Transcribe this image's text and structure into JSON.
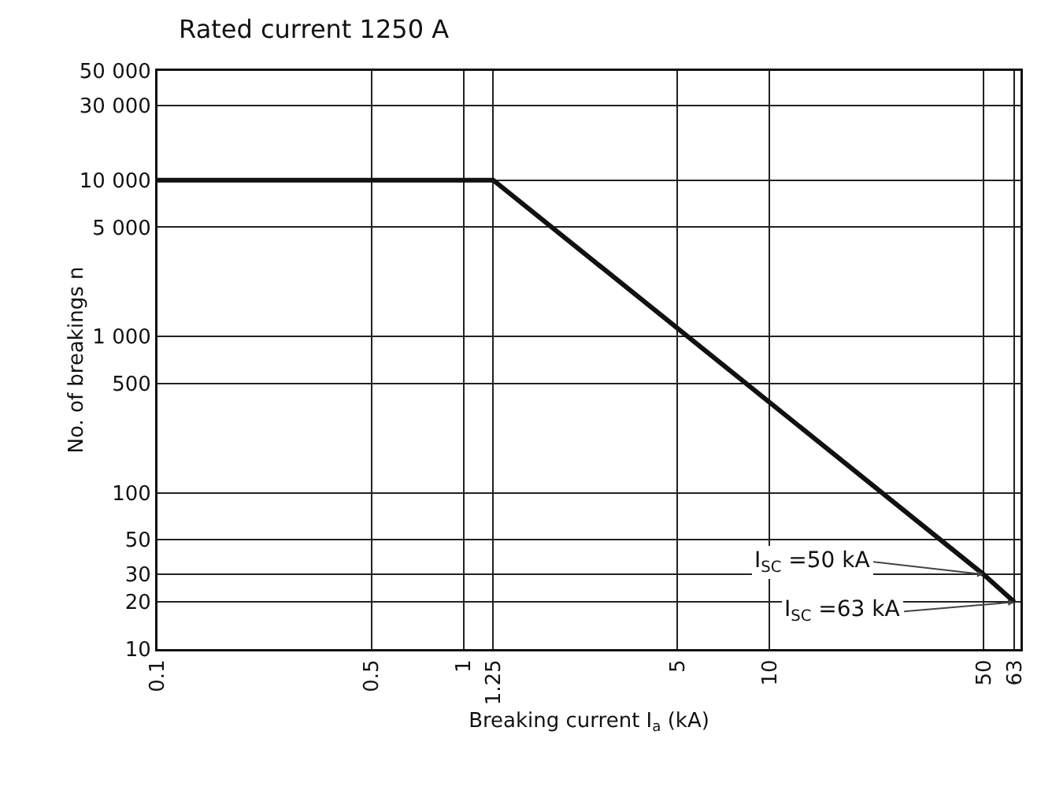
{
  "chart_data": {
    "type": "line",
    "title": "Rated current 1250 A",
    "xlabel": "Breaking current I$_{a}$ (kA)",
    "ylabel": "No. of breakings n",
    "x": [
      0.1,
      1.25,
      50,
      63
    ],
    "series": [
      {
        "color": "#111111",
        "values": [
          10000,
          10000,
          30,
          20
        ]
      }
    ],
    "log": "xy",
    "xlim": [
      0.1,
      66
    ],
    "ylim": [
      10,
      50000
    ],
    "xticks": [
      0.1,
      0.5,
      1,
      1.25,
      5,
      10,
      50,
      63
    ],
    "yticks": [
      10,
      20,
      30,
      50,
      100,
      500,
      {
        "value": 1000,
        "label": "1 000"
      },
      {
        "value": 5000,
        "label": "5 000"
      },
      {
        "value": 10000,
        "label": "10 000"
      },
      {
        "value": 30000,
        "label": "30 000"
      },
      {
        "value": 50000,
        "label": "50 000"
      }
    ],
    "grid": true,
    "marker": "none",
    "line_style": "solid",
    "annotations": [
      {
        "text": "I$_{SC}$ =50 kA",
        "x": 50,
        "y": 30
      },
      {
        "text": "I$_{SC}$ =63 kA",
        "x": 63,
        "y": 20
      }
    ]
  }
}
